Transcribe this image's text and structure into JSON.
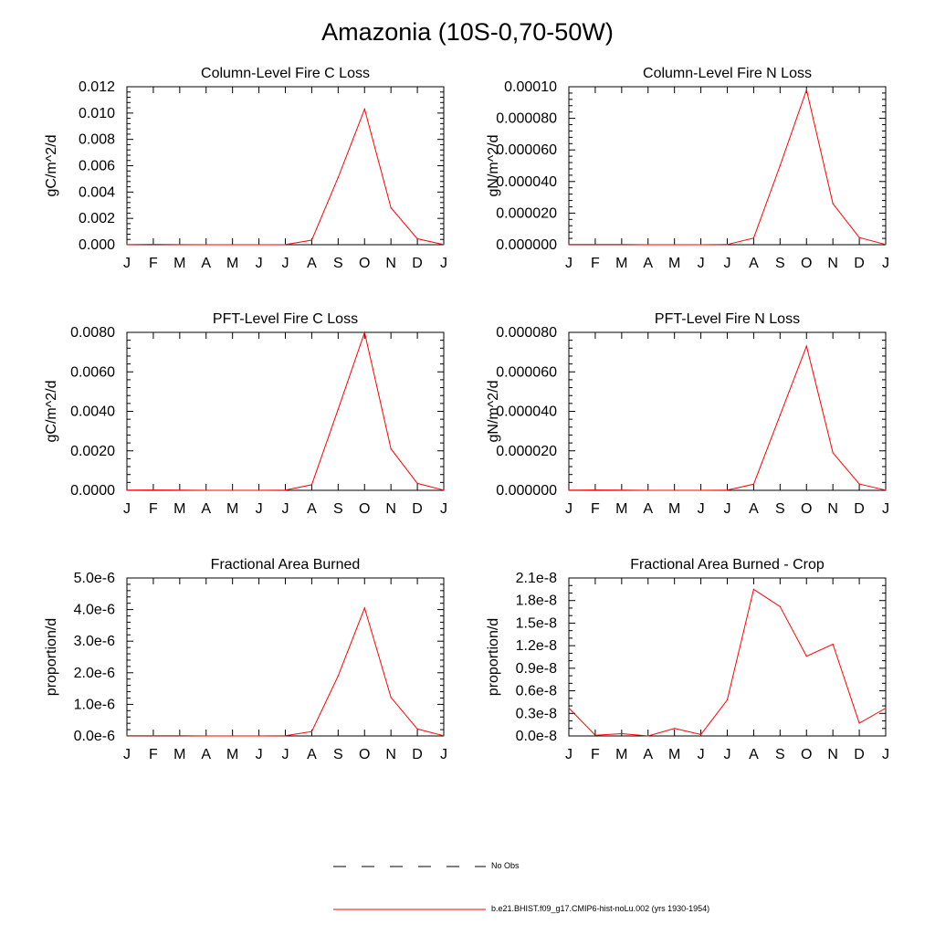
{
  "title": "Amazonia (10S-0,70-50W)",
  "months": [
    "J",
    "F",
    "M",
    "A",
    "M",
    "J",
    "J",
    "A",
    "S",
    "O",
    "N",
    "D",
    "J"
  ],
  "colors": {
    "model_line": "#ff0000",
    "obs_line": "#000000",
    "axis": "#000000"
  },
  "legend": {
    "obs_label": "No Obs",
    "model_label": "b.e21.BHIST.f09_g17.CMIP6-hist-noLu.002 (yrs 1930-1954)"
  },
  "chart_data": [
    {
      "type": "line",
      "title": "Column-Level Fire C Loss",
      "ylabel": "gC/m^2/d",
      "ylim": [
        0,
        0.012
      ],
      "yticks": [
        0,
        0.002,
        0.004,
        0.006,
        0.008,
        0.01,
        0.012
      ],
      "ytick_labels": [
        "0.000",
        "0.002",
        "0.004",
        "0.006",
        "0.008",
        "0.010",
        "0.012"
      ],
      "yminor_count": 4,
      "grid": false,
      "categories": [
        "J",
        "F",
        "M",
        "A",
        "M",
        "J",
        "J",
        "A",
        "S",
        "O",
        "N",
        "D",
        "J"
      ],
      "series": [
        {
          "values": [
            1e-05,
            3e-05,
            1e-05,
            0.0,
            0.0,
            0.0,
            1e-05,
            0.00035,
            0.0051,
            0.0103,
            0.0028,
            0.00045,
            1e-05
          ]
        }
      ]
    },
    {
      "type": "line",
      "title": "Column-Level Fire N Loss",
      "ylabel": "gN/m^2/d",
      "ylim": [
        0,
        0.0001
      ],
      "yticks": [
        0,
        2e-05,
        4e-05,
        6e-05,
        8e-05,
        0.0001
      ],
      "ytick_labels": [
        "0.000000",
        "0.000020",
        "0.000040",
        "0.000060",
        "0.000080",
        "0.00010"
      ],
      "yminor_count": 4,
      "grid": false,
      "categories": [
        "J",
        "F",
        "M",
        "A",
        "M",
        "J",
        "J",
        "A",
        "S",
        "O",
        "N",
        "D",
        "J"
      ],
      "series": [
        {
          "values": [
            1e-07,
            2e-07,
            1e-07,
            0.0,
            0.0,
            0.0,
            1e-07,
            4.2e-06,
            5e-05,
            9.8e-05,
            2.6e-05,
            4.5e-06,
            1e-07
          ]
        }
      ]
    },
    {
      "type": "line",
      "title": "PFT-Level Fire C Loss",
      "ylabel": "gC/m^2/d",
      "ylim": [
        0,
        0.008
      ],
      "yticks": [
        0,
        0.002,
        0.004,
        0.006,
        0.008
      ],
      "ytick_labels": [
        "0.0000",
        "0.0020",
        "0.0040",
        "0.0060",
        "0.0080"
      ],
      "yminor_count": 4,
      "grid": false,
      "categories": [
        "J",
        "F",
        "M",
        "A",
        "M",
        "J",
        "J",
        "A",
        "S",
        "O",
        "N",
        "D",
        "J"
      ],
      "series": [
        {
          "values": [
            1e-05,
            2e-05,
            1e-05,
            0.0,
            0.0,
            0.0,
            1e-05,
            0.00028,
            0.0041,
            0.008,
            0.0021,
            0.00035,
            1e-05
          ]
        }
      ]
    },
    {
      "type": "line",
      "title": "PFT-Level Fire N Loss",
      "ylabel": "gN/m^2/d",
      "ylim": [
        0,
        8e-05
      ],
      "yticks": [
        0,
        2e-05,
        4e-05,
        6e-05,
        8e-05
      ],
      "ytick_labels": [
        "0.000000",
        "0.000020",
        "0.000040",
        "0.000060",
        "0.000080"
      ],
      "yminor_count": 4,
      "grid": false,
      "categories": [
        "J",
        "F",
        "M",
        "A",
        "M",
        "J",
        "J",
        "A",
        "S",
        "O",
        "N",
        "D",
        "J"
      ],
      "series": [
        {
          "values": [
            1e-07,
            2e-07,
            1e-07,
            0.0,
            0.0,
            0.0,
            1e-07,
            3.1e-06,
            3.8e-05,
            7.3e-05,
            1.9e-05,
            3.2e-06,
            1e-07
          ]
        }
      ]
    },
    {
      "type": "line",
      "title": "Fractional Area Burned",
      "ylabel": "proportion/d",
      "ylim": [
        0,
        5e-06
      ],
      "yticks": [
        0,
        1e-06,
        2e-06,
        3e-06,
        4e-06,
        5e-06
      ],
      "ytick_labels": [
        "0.0e-6",
        "1.0e-6",
        "2.0e-6",
        "3.0e-6",
        "4.0e-6",
        "5.0e-6"
      ],
      "yminor_count": 4,
      "grid": false,
      "categories": [
        "J",
        "F",
        "M",
        "A",
        "M",
        "J",
        "J",
        "A",
        "S",
        "O",
        "N",
        "D",
        "J"
      ],
      "series": [
        {
          "values": [
            5e-09,
            1e-08,
            5e-09,
            0.0,
            0.0,
            0.0,
            5e-09,
            1.4e-07,
            1.9e-06,
            4.05e-06,
            1.22e-06,
            2.2e-07,
            5e-09
          ]
        }
      ]
    },
    {
      "type": "line",
      "title": "Fractional Area Burned - Crop",
      "ylabel": "proportion/d",
      "ylim": [
        0,
        2.1e-08
      ],
      "yticks": [
        0,
        3e-09,
        6e-09,
        9e-09,
        1.2e-08,
        1.5e-08,
        1.8e-08,
        2.1e-08
      ],
      "ytick_labels": [
        "0.0e-8",
        "0.3e-8",
        "0.6e-8",
        "0.9e-8",
        "1.2e-8",
        "1.5e-8",
        "1.8e-8",
        "2.1e-8"
      ],
      "yminor_count": 2,
      "grid": false,
      "categories": [
        "J",
        "F",
        "M",
        "A",
        "M",
        "J",
        "J",
        "A",
        "S",
        "O",
        "N",
        "D",
        "J"
      ],
      "series": [
        {
          "values": [
            3.7e-09,
            1e-10,
            3e-10,
            0.0,
            1e-09,
            2e-10,
            4.8e-09,
            1.95e-08,
            1.72e-08,
            1.06e-08,
            1.22e-08,
            1.7e-09,
            3.7e-09
          ]
        }
      ]
    }
  ]
}
